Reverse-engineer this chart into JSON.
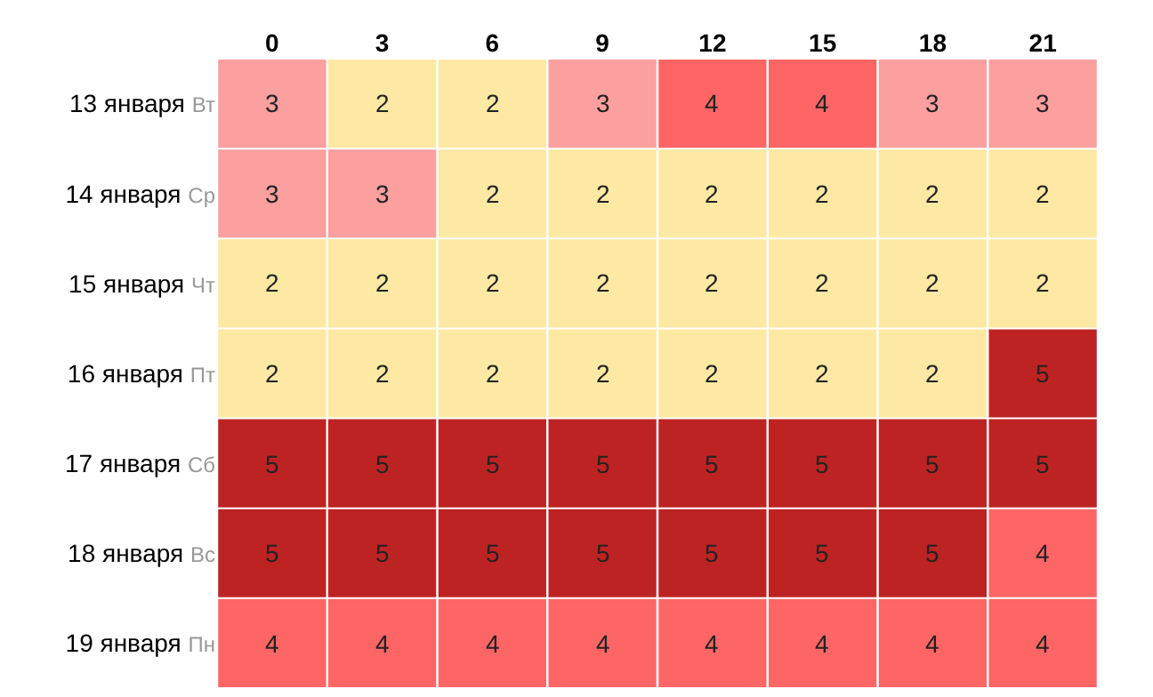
{
  "chart_data": {
    "type": "heatmap",
    "categories": [
      "0",
      "3",
      "6",
      "9",
      "12",
      "15",
      "18",
      "21"
    ],
    "y_categories": [
      "13 января Вт",
      "14 января Ср",
      "15 января Чт",
      "16 января Пт",
      "17 января Сб",
      "18 января Вс",
      "19 января Пн"
    ],
    "cells": [
      [
        3,
        2,
        2,
        3,
        4,
        4,
        3,
        3
      ],
      [
        3,
        3,
        2,
        2,
        2,
        2,
        2,
        2
      ],
      [
        2,
        2,
        2,
        2,
        2,
        2,
        2,
        2
      ],
      [
        2,
        2,
        2,
        2,
        2,
        2,
        2,
        5
      ],
      [
        5,
        5,
        5,
        5,
        5,
        5,
        5,
        5
      ],
      [
        5,
        5,
        5,
        5,
        5,
        5,
        5,
        4
      ],
      [
        4,
        4,
        4,
        4,
        4,
        4,
        4,
        4
      ]
    ],
    "colors": [
      [
        "#fc9f9f",
        "#fde9a3",
        "#fde9a3",
        "#fc9f9f",
        "#fe6666",
        "#fe6666",
        "#fc9f9f",
        "#fc9f9f"
      ],
      [
        "#fc9f9f",
        "#fc9f9f",
        "#fde9a3",
        "#fde9a3",
        "#fde9a3",
        "#fde9a3",
        "#fde9a3",
        "#fde9a3"
      ],
      [
        "#fde9a3",
        "#fde9a3",
        "#fde9a3",
        "#fde9a3",
        "#fde9a3",
        "#fde9a3",
        "#fde9a3",
        "#fde9a3"
      ],
      [
        "#fde9a3",
        "#fde9a3",
        "#fde9a3",
        "#fde9a3",
        "#fde9a3",
        "#fde9a3",
        "#fde9a3",
        "#be2323"
      ],
      [
        "#be2323",
        "#be2323",
        "#be2323",
        "#be2323",
        "#be2323",
        "#be2323",
        "#be2323",
        "#be2323"
      ],
      [
        "#be2323",
        "#be2323",
        "#be2323",
        "#be2323",
        "#be2323",
        "#be2323",
        "#be2323",
        "#fe6666"
      ],
      [
        "#fe6666",
        "#fe6666",
        "#fe6666",
        "#fe6666",
        "#fe6666",
        "#fe6666",
        "#fe6666",
        "#fe6666"
      ]
    ],
    "data_labels": true
  }
}
